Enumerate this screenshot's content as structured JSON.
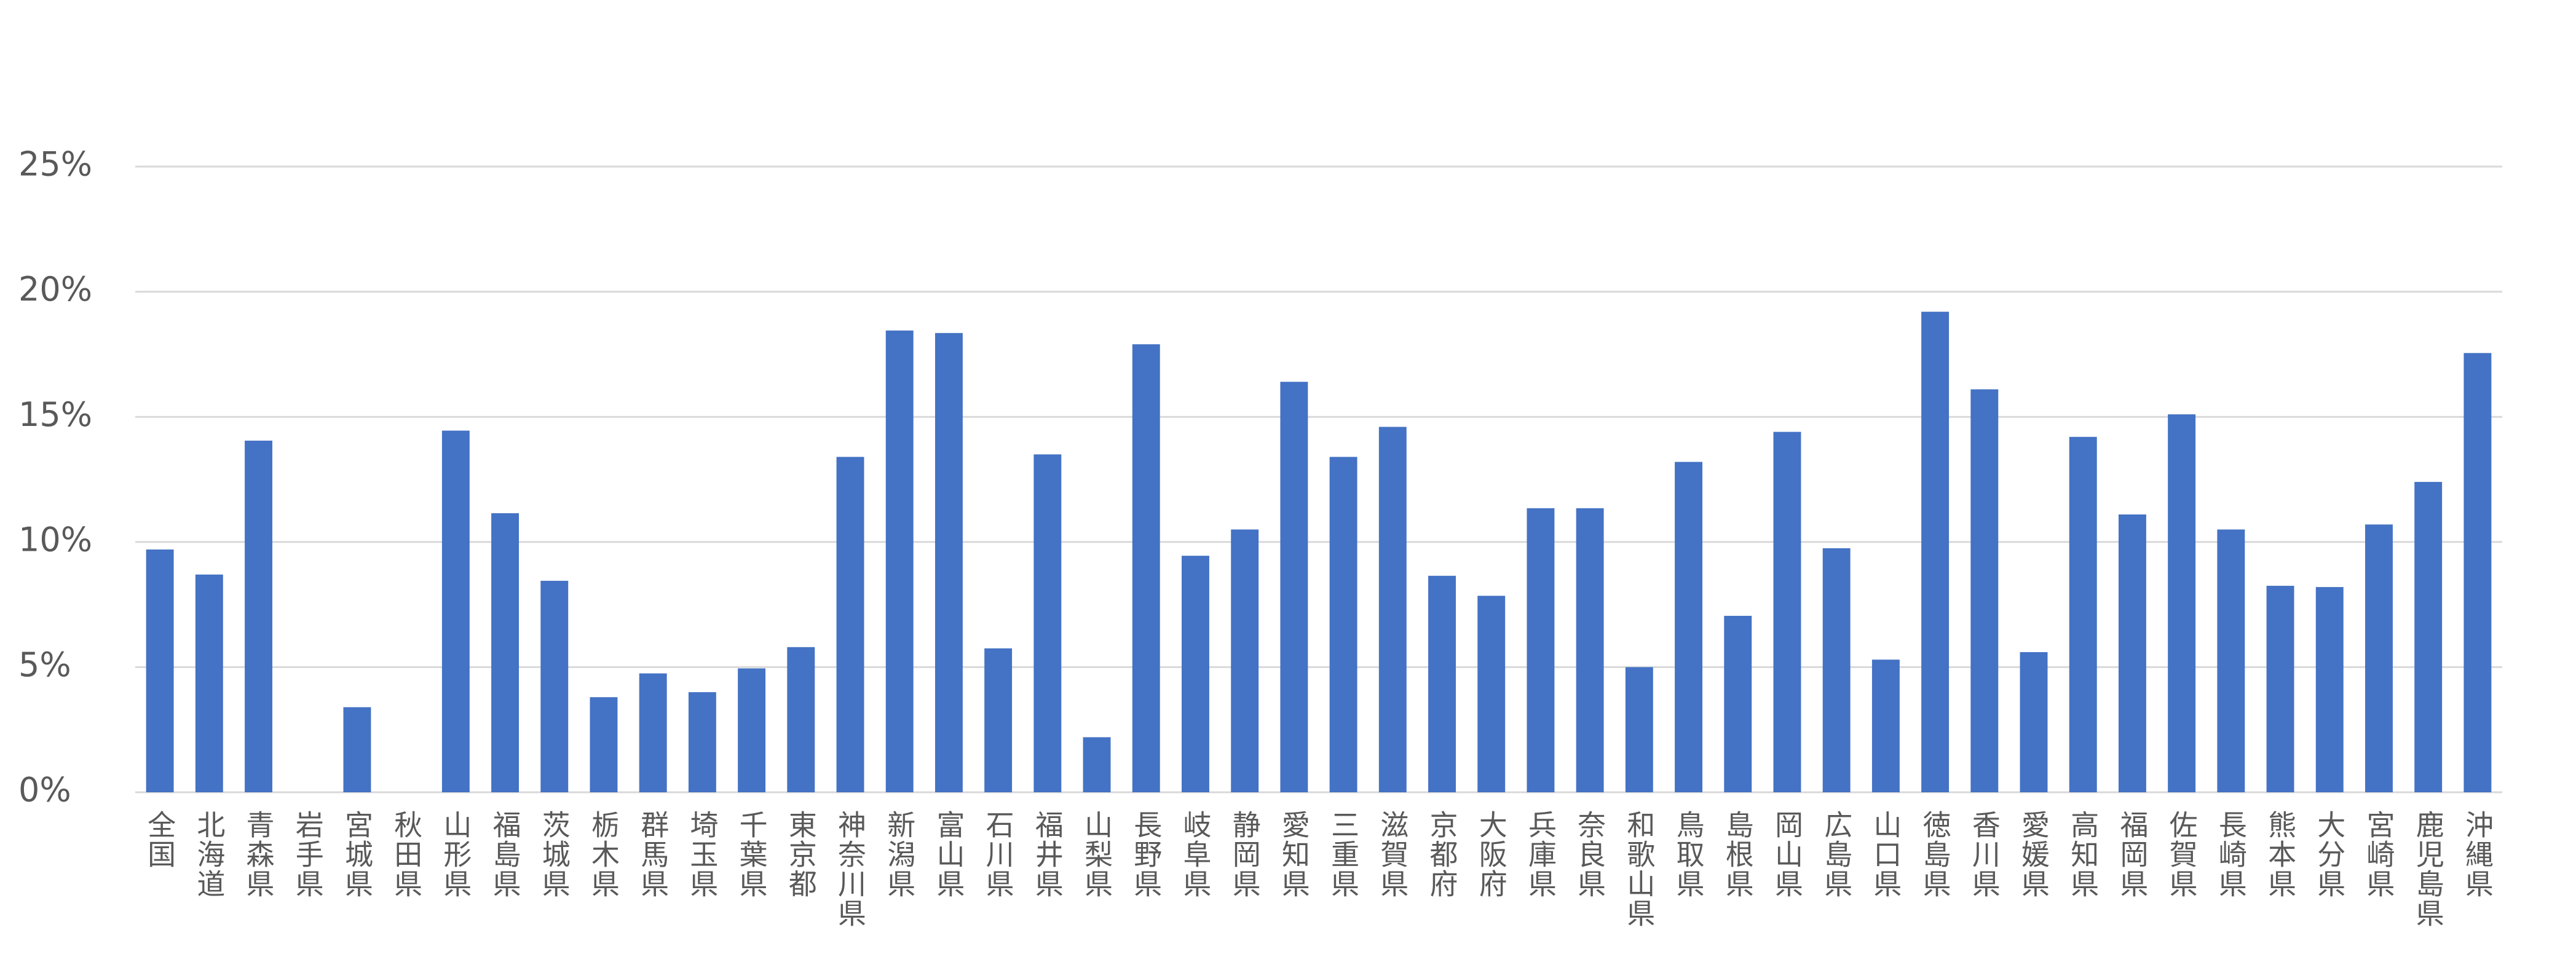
{
  "chart_data": {
    "type": "bar",
    "categories": [
      "全国",
      "北海道",
      "青森県",
      "岩手県",
      "宮城県",
      "秋田県",
      "山形県",
      "福島県",
      "茨城県",
      "栃木県",
      "群馬県",
      "埼玉県",
      "千葉県",
      "東京都",
      "神奈川県",
      "新潟県",
      "富山県",
      "石川県",
      "福井県",
      "山梨県",
      "長野県",
      "岐阜県",
      "静岡県",
      "愛知県",
      "三重県",
      "滋賀県",
      "京都府",
      "大阪府",
      "兵庫県",
      "奈良県",
      "和歌山県",
      "鳥取県",
      "島根県",
      "岡山県",
      "広島県",
      "山口県",
      "徳島県",
      "香川県",
      "愛媛県",
      "高知県",
      "福岡県",
      "佐賀県",
      "長崎県",
      "熊本県",
      "大分県",
      "宮崎県",
      "鹿児島県",
      "沖縄県"
    ],
    "values": [
      9.7,
      8.7,
      14.05,
      0,
      3.4,
      0,
      14.45,
      11.15,
      8.45,
      3.8,
      4.75,
      4.0,
      4.95,
      5.8,
      13.4,
      18.45,
      18.35,
      5.75,
      13.5,
      2.2,
      17.9,
      9.45,
      10.5,
      16.4,
      13.4,
      14.6,
      8.65,
      7.85,
      11.35,
      11.35,
      5.0,
      13.2,
      7.05,
      14.4,
      9.75,
      5.3,
      19.2,
      16.1,
      5.6,
      14.2,
      11.1,
      15.1,
      10.5,
      8.25,
      8.2,
      10.7,
      12.4,
      17.55
    ],
    "color": "#4472c4",
    "ylim": [
      0,
      25
    ],
    "yticks": [
      {
        "value": 0,
        "label": "0%"
      },
      {
        "value": 5,
        "label": "5%"
      },
      {
        "value": 10,
        "label": "10%"
      },
      {
        "value": 15,
        "label": "15%"
      },
      {
        "value": 20,
        "label": "20%"
      },
      {
        "value": 25,
        "label": "25%"
      }
    ],
    "grid": true
  }
}
